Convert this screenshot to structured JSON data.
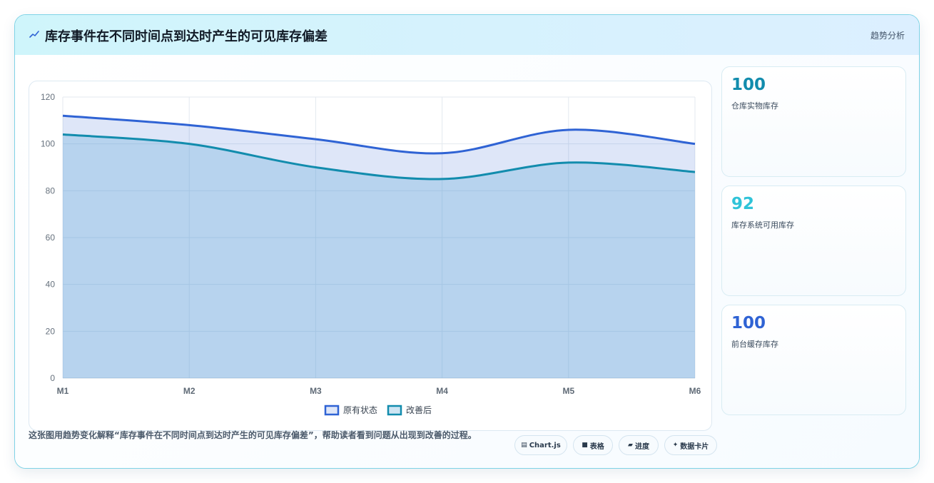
{
  "header": {
    "title": "库存事件在不同时间点到达时产生的可见库存偏差",
    "right_label": "趋势分析",
    "icon": "trend-line-icon"
  },
  "chart_data": {
    "type": "area",
    "categories": [
      "M1",
      "M2",
      "M3",
      "M4",
      "M5",
      "M6"
    ],
    "series": [
      {
        "name": "原有状态",
        "values": [
          112,
          108,
          102,
          96,
          106,
          100
        ],
        "color": "#2f63d4",
        "fill": "rgba(47,99,212,0.16)"
      },
      {
        "name": "改善后",
        "values": [
          104,
          100,
          90,
          85,
          92,
          88
        ],
        "color": "#128cad",
        "fill": "rgba(92,170,214,0.30)"
      }
    ],
    "ylim": [
      0,
      120
    ],
    "yticks": [
      0,
      20,
      40,
      60,
      80,
      100,
      120
    ],
    "grid": true,
    "legend": "bottom-center"
  },
  "stats": [
    {
      "value": "100",
      "label": "仓库实物库存",
      "color": "#128cad"
    },
    {
      "value": "92",
      "label": "库存系统可用库存",
      "color": "#2fc3d8"
    },
    {
      "value": "100",
      "label": "前台缓存库存",
      "color": "#2f63d4"
    }
  ],
  "footer": {
    "description": "这张图用趋势变化解释“库存事件在不同时间点到达时产生的可见库存偏差”，帮助读者看到问题从出现到改善的过程。",
    "chips": [
      {
        "label": "Chart.js",
        "icon": "chart-icon"
      },
      {
        "label": "表格",
        "icon": "table-icon"
      },
      {
        "label": "进度",
        "icon": "progress-icon"
      },
      {
        "label": "数据卡片",
        "icon": "sparkle-icon"
      }
    ]
  }
}
